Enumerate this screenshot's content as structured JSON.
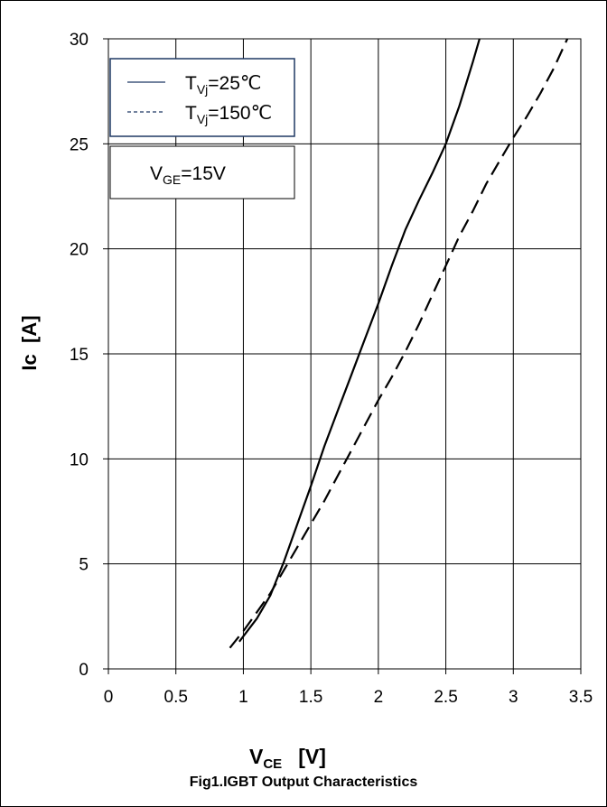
{
  "chart_data": {
    "type": "line",
    "title": "Fig1.IGBT Output Characteristics",
    "xlabel": {
      "main": "V",
      "sub": "CE",
      "unit": "[V]"
    },
    "ylabel": "Ic  [A]",
    "xlim": [
      0,
      3.5
    ],
    "ylim": [
      0,
      30
    ],
    "xticks": [
      "0",
      "0.5",
      "1",
      "1.5",
      "2",
      "2.5",
      "3",
      "3.5"
    ],
    "yticks": [
      "0",
      "5",
      "10",
      "15",
      "20",
      "25",
      "30"
    ],
    "grid": true,
    "legend_position": "top-left",
    "series": [
      {
        "name": "T_Vj=25℃",
        "name_main": "T",
        "name_sub": "Vj",
        "name_rest": "=25℃",
        "style": "solid",
        "x": [
          0.97,
          1.1,
          1.2,
          1.3,
          1.4,
          1.5,
          1.6,
          1.7,
          1.8,
          1.9,
          2.0,
          2.1,
          2.2,
          2.3,
          2.4,
          2.5,
          2.6,
          2.7,
          2.75
        ],
        "y": [
          1.3,
          2.4,
          3.5,
          5.1,
          6.9,
          8.7,
          10.6,
          12.3,
          14.0,
          15.7,
          17.4,
          19.2,
          20.9,
          22.3,
          23.6,
          25.0,
          26.8,
          28.9,
          30.0
        ]
      },
      {
        "name": "T_Vj=150℃",
        "name_main": "T",
        "name_sub": "Vj",
        "name_rest": "=150℃",
        "style": "dashed",
        "x": [
          0.9,
          1.0,
          1.1,
          1.2,
          1.3,
          1.4,
          1.5,
          1.6,
          1.7,
          1.8,
          1.9,
          2.0,
          2.1,
          2.2,
          2.3,
          2.4,
          2.5,
          2.6,
          2.7,
          2.8,
          2.9,
          3.0,
          3.1,
          3.2,
          3.3,
          3.4
        ],
        "y": [
          1.0,
          1.8,
          2.7,
          3.6,
          4.7,
          5.8,
          6.9,
          8.0,
          9.2,
          10.4,
          11.6,
          12.8,
          13.9,
          15.1,
          16.4,
          17.8,
          19.2,
          20.6,
          21.8,
          23.1,
          24.2,
          25.3,
          26.3,
          27.4,
          28.6,
          30.0
        ]
      }
    ],
    "annotation": {
      "main": "V",
      "sub": "GE",
      "rest": "=15V"
    }
  }
}
